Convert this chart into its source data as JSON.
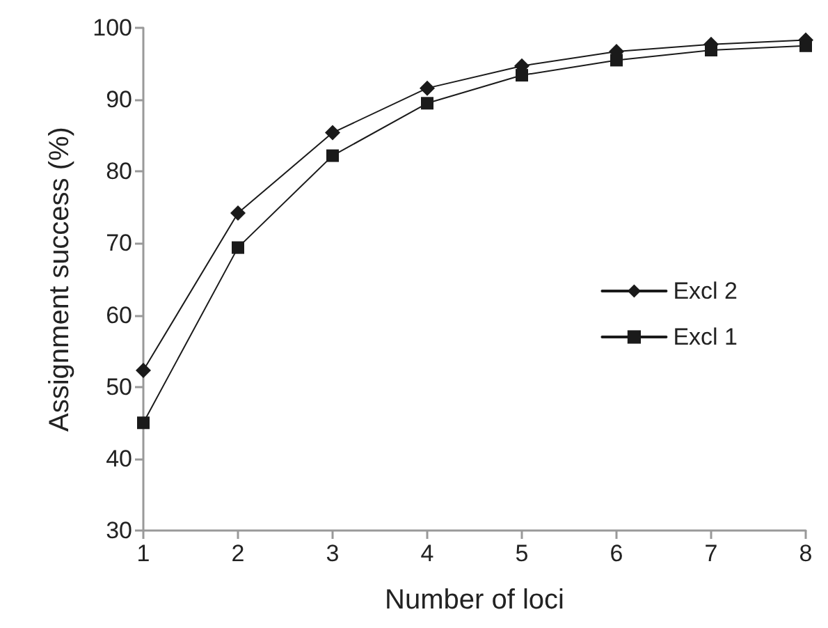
{
  "chart_data": {
    "type": "line",
    "xlabel": "Number of loci",
    "ylabel": "Assignment success (%)",
    "x": [
      1,
      2,
      3,
      4,
      5,
      6,
      7,
      8
    ],
    "series": [
      {
        "name": "Excl 2",
        "color": "#1a1a1a",
        "marker": "diamond",
        "values": [
          52.3,
          74.2,
          85.4,
          91.6,
          94.7,
          96.7,
          97.7,
          98.3
        ]
      },
      {
        "name": "Excl 1",
        "color": "#1a1a1a",
        "marker": "square",
        "values": [
          45,
          69.4,
          82.2,
          89.5,
          93.4,
          95.5,
          96.9,
          97.5
        ]
      }
    ],
    "xlim": [
      1,
      8
    ],
    "xticks": [
      1,
      2,
      3,
      4,
      5,
      6,
      7,
      8
    ],
    "ylim": [
      30,
      100
    ],
    "yticks": [
      30,
      40,
      50,
      60,
      70,
      80,
      90,
      100
    ],
    "grid": false,
    "legend": "right",
    "line_style": "solid"
  }
}
